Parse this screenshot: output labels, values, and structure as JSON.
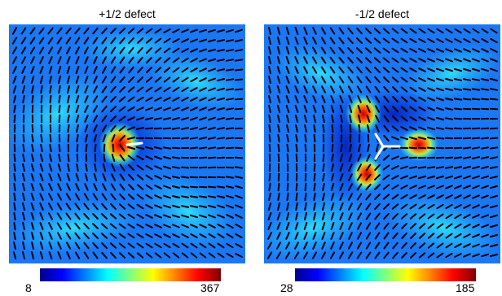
{
  "panels": [
    {
      "title": "+1/2 defect",
      "defect": "+1/2",
      "colorbar": {
        "min": "8",
        "max": "367"
      }
    },
    {
      "title": "-1/2 defect",
      "defect": "-1/2",
      "colorbar": {
        "min": "28",
        "max": "185"
      }
    }
  ],
  "colormap": [
    "#00008f",
    "#0000ff",
    "#007fff",
    "#00ffff",
    "#7fff7f",
    "#ffff00",
    "#ff7f00",
    "#ff0000",
    "#7f0000"
  ],
  "colors": {
    "director": "#000000",
    "defect_marker": "#ffffff"
  }
}
